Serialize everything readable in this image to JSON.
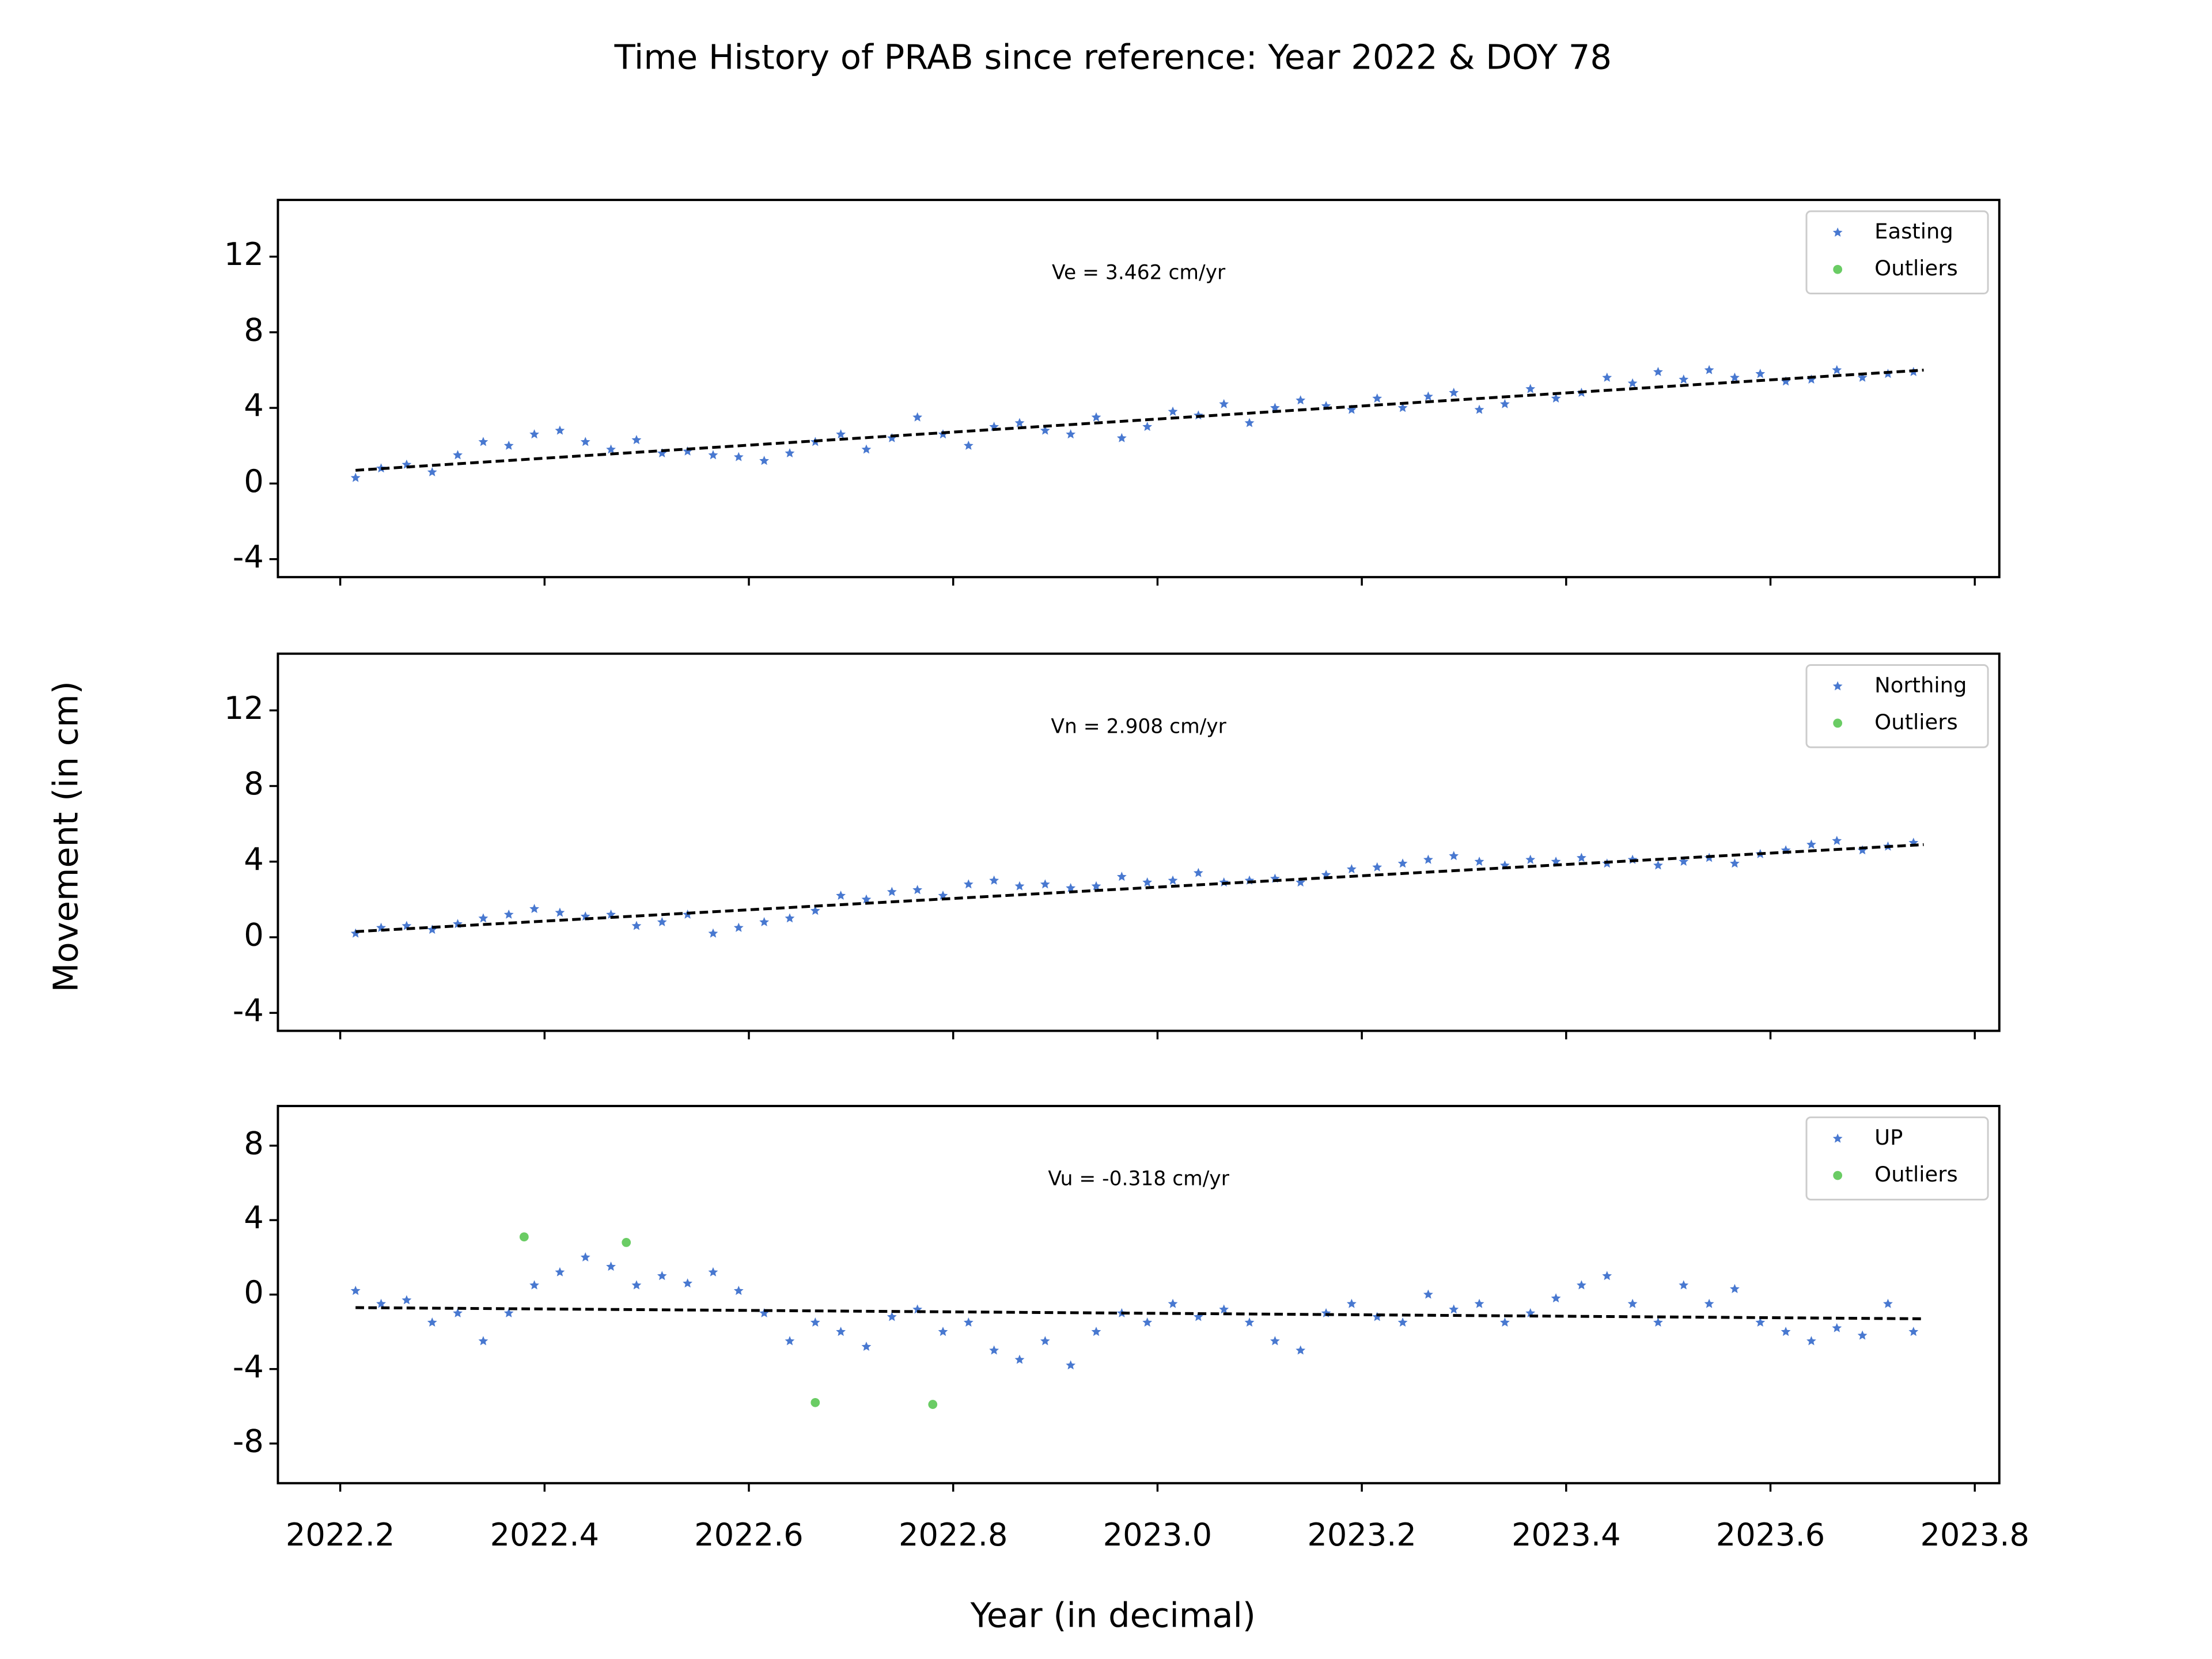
{
  "title": "Time History of PRAB since reference: Year 2022 & DOY 78",
  "xlabel": "Year (in decimal)",
  "ylabel": "Movement (in cm)",
  "chart_data": [
    {
      "type": "scatter",
      "annotation": "Ve =  3.462 cm/yr",
      "xlim": [
        2022.139,
        2023.824
      ],
      "ylim": [
        -4.95,
        15
      ],
      "yticks": [
        -4,
        0,
        4,
        8,
        12
      ],
      "xticks": [
        2022.2,
        2022.4,
        2022.6,
        2022.8,
        2023,
        2023.2,
        2023.4,
        2023.6,
        2023.8
      ],
      "legend": "upper right",
      "series": [
        {
          "name": "Easting",
          "color": "#4878d0",
          "marker": "star",
          "x": [
            2022.215,
            2022.24,
            2022.265,
            2022.29,
            2022.315,
            2022.34,
            2022.365,
            2022.39,
            2022.415,
            2022.44,
            2022.465,
            2022.49,
            2022.515,
            2022.54,
            2022.565,
            2022.59,
            2022.615,
            2022.64,
            2022.665,
            2022.69,
            2022.715,
            2022.74,
            2022.765,
            2022.79,
            2022.815,
            2022.84,
            2022.865,
            2022.89,
            2022.915,
            2022.94,
            2022.965,
            2022.99,
            2023.015,
            2023.04,
            2023.065,
            2023.09,
            2023.115,
            2023.14,
            2023.165,
            2023.19,
            2023.215,
            2023.24,
            2023.265,
            2023.29,
            2023.315,
            2023.34,
            2023.365,
            2023.39,
            2023.415,
            2023.44,
            2023.465,
            2023.49,
            2023.515,
            2023.54,
            2023.565,
            2023.59,
            2023.615,
            2023.64,
            2023.665,
            2023.69,
            2023.715,
            2023.74
          ],
          "values": [
            0.3,
            0.8,
            1.0,
            0.6,
            1.5,
            2.2,
            2.0,
            2.6,
            2.8,
            2.2,
            1.8,
            2.3,
            1.6,
            1.7,
            1.5,
            1.4,
            1.2,
            1.6,
            2.2,
            2.6,
            1.8,
            2.4,
            3.5,
            2.6,
            2.0,
            3.0,
            3.2,
            2.8,
            2.6,
            3.5,
            2.4,
            3.0,
            3.8,
            3.6,
            4.2,
            3.2,
            4.0,
            4.4,
            4.1,
            3.9,
            4.5,
            4.0,
            4.6,
            4.8,
            3.9,
            4.2,
            5.0,
            4.5,
            4.8,
            5.6,
            5.3,
            5.9,
            5.5,
            6.0,
            5.6,
            5.8,
            5.4,
            5.5,
            6.0,
            5.6,
            5.8,
            5.9
          ]
        },
        {
          "name": "Outliers",
          "color": "#6acc64",
          "marker": "dot",
          "x": [],
          "values": []
        }
      ],
      "fit_line": {
        "color": "#000000",
        "x": [
          2022.215,
          2023.75
        ],
        "values": [
          0.7,
          6.0
        ]
      }
    },
    {
      "type": "scatter",
      "annotation": "Vn =  2.908 cm/yr",
      "xlim": [
        2022.139,
        2023.824
      ],
      "ylim": [
        -4.95,
        15
      ],
      "yticks": [
        -4,
        0,
        4,
        8,
        12
      ],
      "xticks": [
        2022.2,
        2022.4,
        2022.6,
        2022.8,
        2023,
        2023.2,
        2023.4,
        2023.6,
        2023.8
      ],
      "legend": "upper right",
      "series": [
        {
          "name": "Northing",
          "color": "#4878d0",
          "marker": "star",
          "x": [
            2022.215,
            2022.24,
            2022.265,
            2022.29,
            2022.315,
            2022.34,
            2022.365,
            2022.39,
            2022.415,
            2022.44,
            2022.465,
            2022.49,
            2022.515,
            2022.54,
            2022.565,
            2022.59,
            2022.615,
            2022.64,
            2022.665,
            2022.69,
            2022.715,
            2022.74,
            2022.765,
            2022.79,
            2022.815,
            2022.84,
            2022.865,
            2022.89,
            2022.915,
            2022.94,
            2022.965,
            2022.99,
            2023.015,
            2023.04,
            2023.065,
            2023.09,
            2023.115,
            2023.14,
            2023.165,
            2023.19,
            2023.215,
            2023.24,
            2023.265,
            2023.29,
            2023.315,
            2023.34,
            2023.365,
            2023.39,
            2023.415,
            2023.44,
            2023.465,
            2023.49,
            2023.515,
            2023.54,
            2023.565,
            2023.59,
            2023.615,
            2023.64,
            2023.665,
            2023.69,
            2023.715,
            2023.74
          ],
          "values": [
            0.2,
            0.5,
            0.6,
            0.4,
            0.7,
            1.0,
            1.2,
            1.5,
            1.3,
            1.1,
            1.2,
            0.6,
            0.8,
            1.2,
            0.2,
            0.5,
            0.8,
            1.0,
            1.4,
            2.2,
            2.0,
            2.4,
            2.5,
            2.2,
            2.8,
            3.0,
            2.7,
            2.8,
            2.6,
            2.7,
            3.2,
            2.9,
            3.0,
            3.4,
            2.9,
            3.0,
            3.1,
            2.9,
            3.3,
            3.6,
            3.7,
            3.9,
            4.1,
            4.3,
            4.0,
            3.8,
            4.1,
            4.0,
            4.2,
            3.9,
            4.1,
            3.8,
            4.0,
            4.2,
            3.9,
            4.4,
            4.6,
            4.9,
            5.1,
            4.6,
            4.8,
            5.0
          ]
        },
        {
          "name": "Outliers",
          "color": "#6acc64",
          "marker": "dot",
          "x": [],
          "values": []
        }
      ],
      "fit_line": {
        "color": "#000000",
        "x": [
          2022.215,
          2023.75
        ],
        "values": [
          0.3,
          4.9
        ]
      }
    },
    {
      "type": "scatter",
      "annotation": "Vu = -0.318 cm/yr",
      "xlim": [
        2022.139,
        2023.824
      ],
      "ylim": [
        -10.13,
        10.13
      ],
      "yticks": [
        -8,
        -4,
        0,
        4,
        8
      ],
      "xticks": [
        2022.2,
        2022.4,
        2022.6,
        2022.8,
        {
          "value": 2023,
          "label": "2023.0"
        },
        2023.2,
        2023.4,
        2023.6,
        2023.8
      ],
      "legend": "upper right",
      "series": [
        {
          "name": "UP",
          "color": "#4878d0",
          "marker": "star",
          "x": [
            2022.215,
            2022.24,
            2022.265,
            2022.29,
            2022.315,
            2022.34,
            2022.365,
            2022.39,
            2022.415,
            2022.44,
            2022.465,
            2022.49,
            2022.515,
            2022.54,
            2022.565,
            2022.59,
            2022.615,
            2022.64,
            2022.665,
            2022.69,
            2022.715,
            2022.74,
            2022.765,
            2022.79,
            2022.815,
            2022.84,
            2022.865,
            2022.89,
            2022.915,
            2022.94,
            2022.965,
            2022.99,
            2023.015,
            2023.04,
            2023.065,
            2023.09,
            2023.115,
            2023.14,
            2023.165,
            2023.19,
            2023.215,
            2023.24,
            2023.265,
            2023.29,
            2023.315,
            2023.34,
            2023.365,
            2023.39,
            2023.415,
            2023.44,
            2023.465,
            2023.49,
            2023.515,
            2023.54,
            2023.565,
            2023.59,
            2023.615,
            2023.64,
            2023.665,
            2023.69,
            2023.715,
            2023.74
          ],
          "values": [
            0.2,
            -0.5,
            -0.3,
            -1.5,
            -1.0,
            -2.5,
            -1.0,
            0.5,
            1.2,
            2.0,
            1.5,
            0.5,
            1.0,
            0.6,
            1.2,
            0.2,
            -1.0,
            -2.5,
            -1.5,
            -2.0,
            -2.8,
            -1.2,
            -0.8,
            -2.0,
            -1.5,
            -3.0,
            -3.5,
            -2.5,
            -3.8,
            -2.0,
            -1.0,
            -1.5,
            -0.5,
            -1.2,
            -0.8,
            -1.5,
            -2.5,
            -3.0,
            -1.0,
            -0.5,
            -1.2,
            -1.5,
            0.0,
            -0.8,
            -0.5,
            -1.5,
            -1.0,
            -0.2,
            0.5,
            1.0,
            -0.5,
            -1.5,
            0.5,
            -0.5,
            0.3,
            -1.5,
            -2.0,
            -2.5,
            -1.8,
            -2.2,
            -0.5,
            -2.0
          ]
        },
        {
          "name": "Outliers",
          "color": "#6acc64",
          "marker": "dot",
          "x": [
            2022.38,
            2022.48,
            2022.665,
            2022.78
          ],
          "values": [
            3.1,
            2.8,
            -5.8,
            -5.9
          ]
        }
      ],
      "fit_line": {
        "color": "#000000",
        "x": [
          2022.215,
          2023.75
        ],
        "values": [
          -0.7,
          -1.3
        ]
      }
    }
  ]
}
